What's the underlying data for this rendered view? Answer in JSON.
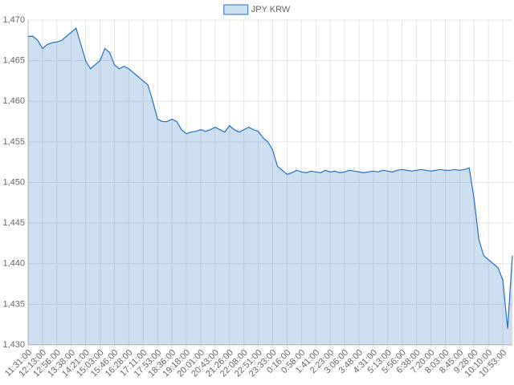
{
  "chart_data": {
    "type": "area",
    "categories": [
      "11:31:00",
      null,
      null,
      "12:13:00",
      null,
      null,
      "12:56:00",
      null,
      null,
      "13:38:00",
      null,
      null,
      "14:21:00",
      null,
      null,
      "15:03:00",
      null,
      null,
      "15:46:00",
      null,
      null,
      "16:28:00",
      null,
      null,
      "17:11:00",
      null,
      null,
      "17:53:00",
      null,
      null,
      "18:36:00",
      null,
      null,
      "19:18:00",
      null,
      null,
      "20:01:00",
      null,
      null,
      "20:43:00",
      null,
      null,
      "21:26:00",
      null,
      null,
      "22:08:00",
      null,
      null,
      "22:51:00",
      null,
      null,
      "23:33:00",
      null,
      null,
      "0:16:00",
      null,
      null,
      "0:58:00",
      null,
      null,
      "1:41:00",
      null,
      null,
      "2:23:00",
      null,
      null,
      "3:06:00",
      null,
      null,
      "3:48:00",
      null,
      null,
      "4:31:00",
      null,
      null,
      "5:13:00",
      null,
      null,
      "5:56:00",
      null,
      null,
      "6:38:00",
      null,
      null,
      "7:20:00",
      null,
      null,
      "8:03:00",
      null,
      null,
      "8:45:00",
      null,
      null,
      "9:28:00",
      null,
      null,
      "10:10:00",
      null,
      null,
      "10:53:00",
      null,
      null
    ],
    "series": [
      {
        "name": "JPY KRW",
        "color": "#1f6fc5",
        "fill": "rgba(31,111,197,0.22)",
        "values": [
          1468,
          1468,
          1467.5,
          1466.5,
          1467,
          1467.2,
          1467.3,
          1467.5,
          1468,
          1468.5,
          1469,
          1467,
          1465,
          1464,
          1464.5,
          1465,
          1466.5,
          1466,
          1464.5,
          1464,
          1464.3,
          1464,
          1463.5,
          1463,
          1462.5,
          1462,
          1460,
          1457.8,
          1457.5,
          1457.5,
          1457.8,
          1457.5,
          1456.5,
          1456,
          1456.2,
          1456.3,
          1456.5,
          1456.3,
          1456.5,
          1456.8,
          1456.5,
          1456.2,
          1457,
          1456.5,
          1456.2,
          1456.5,
          1456.8,
          1456.5,
          1456.3,
          1455.5,
          1455,
          1454,
          1452,
          1451.5,
          1451,
          1451.2,
          1451.5,
          1451.3,
          1451.2,
          1451.4,
          1451.3,
          1451.2,
          1451.5,
          1451.3,
          1451.4,
          1451.2,
          1451.3,
          1451.5,
          1451.4,
          1451.3,
          1451.2,
          1451.3,
          1451.4,
          1451.3,
          1451.5,
          1451.4,
          1451.3,
          1451.5,
          1451.6,
          1451.5,
          1451.4,
          1451.5,
          1451.6,
          1451.5,
          1451.4,
          1451.5,
          1451.6,
          1451.5,
          1451.5,
          1451.6,
          1451.5,
          1451.6,
          1451.8,
          1448,
          1443,
          1441,
          1440.5,
          1440,
          1439.5,
          1438,
          1432,
          1441
        ]
      }
    ],
    "ylim": [
      1430,
      1470
    ],
    "yticks": [
      {
        "value": 1430,
        "label": "1,430"
      },
      {
        "value": 1435,
        "label": "1,435"
      },
      {
        "value": 1440,
        "label": "1,440"
      },
      {
        "value": 1445,
        "label": "1,445"
      },
      {
        "value": 1450,
        "label": "1,450"
      },
      {
        "value": 1455,
        "label": "1,455"
      },
      {
        "value": 1460,
        "label": "1,460"
      },
      {
        "value": 1465,
        "label": "1,465"
      },
      {
        "value": 1470,
        "label": "1,470"
      }
    ],
    "grid": true,
    "legend": "top"
  }
}
